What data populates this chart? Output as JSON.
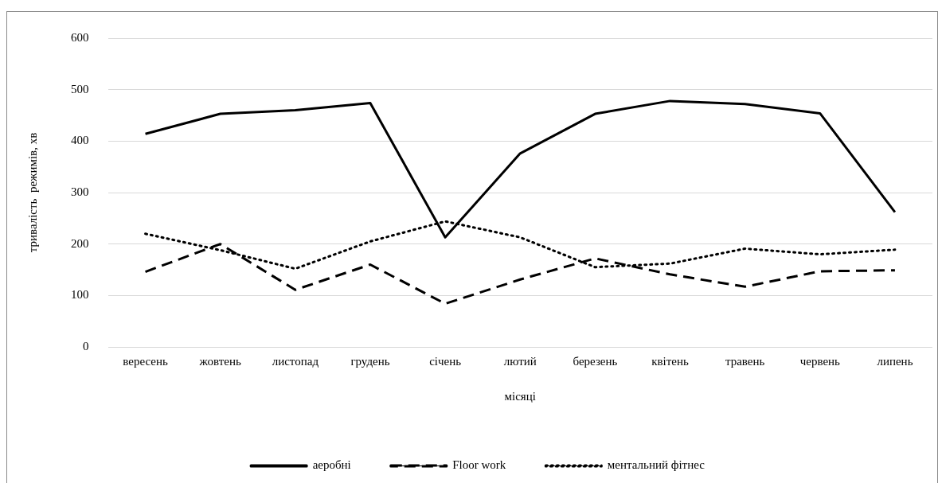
{
  "chart_data": {
    "type": "line",
    "xlabel": "місяці",
    "ylabel": "триваліcть  режимів, хв",
    "categories": [
      "вересень",
      "жовтень",
      "листопад",
      "грудень",
      "січень",
      "лютий",
      "березень",
      "квітень",
      "травень",
      "червень",
      "липень"
    ],
    "series": [
      {
        "name": "аеробні",
        "color": "#000000",
        "line_style": "solid",
        "values": [
          414,
          453,
          460,
          474,
          213,
          376,
          453,
          478,
          472,
          454,
          262
        ]
      },
      {
        "name": "Floor work",
        "color": "#000000",
        "line_style": "dashed",
        "values": [
          146,
          200,
          111,
          160,
          84,
          131,
          172,
          141,
          117,
          147,
          149
        ]
      },
      {
        "name": "ментальний фітнес",
        "color": "#000000",
        "line_style": "dotted",
        "values": [
          220,
          188,
          152,
          205,
          244,
          213,
          155,
          162,
          191,
          180,
          189
        ]
      }
    ],
    "ylim": [
      0,
      600
    ],
    "yticks": [
      0,
      100,
      200,
      300,
      400,
      500,
      600
    ],
    "grid": "y",
    "legend": "bottom",
    "marker": "none"
  }
}
